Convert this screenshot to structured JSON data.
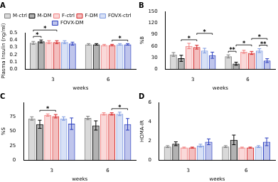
{
  "chart_data": [
    {
      "type": "bar",
      "title": "A",
      "x_label": "weeks",
      "y_label": "Plasma Insulin (ng/ml)",
      "categories": [
        "3",
        "6"
      ],
      "series": [
        {
          "name": "M-ctrl",
          "color": "#808080",
          "values": [
            0.36,
            0.34
          ],
          "errors": [
            0.02,
            0.01
          ]
        },
        {
          "name": "M-DM",
          "color": "#000000",
          "values": [
            0.38,
            0.34
          ],
          "errors": [
            0.02,
            0.01
          ]
        },
        {
          "name": "F-ctrl",
          "color": "#f08080",
          "values": [
            0.37,
            0.33
          ],
          "errors": [
            0.02,
            0.01
          ]
        },
        {
          "name": "F-DM",
          "color": "#d62728",
          "values": [
            0.37,
            0.33
          ],
          "errors": [
            0.02,
            0.01
          ]
        },
        {
          "name": "FOVX-ctrl",
          "color": "#7f9be0",
          "values": [
            0.37,
            0.34
          ],
          "errors": [
            0.02,
            0.01
          ]
        },
        {
          "name": "FOVX-DM",
          "color": "#2b3fbf",
          "values": [
            0.35,
            0.34
          ],
          "errors": [
            0.02,
            0.01
          ]
        }
      ],
      "ylim": [
        0,
        0.5
      ],
      "yticks": [
        {
          "value": 0,
          "label": "0.0"
        },
        0.1,
        0.2,
        0.3,
        0.4,
        0.5
      ],
      "grid": false,
      "legend": "top",
      "annotations": [
        {
          "category": "3",
          "from": "M-ctrl",
          "to": "M-DM",
          "label": "*"
        },
        {
          "category": "3",
          "from": "M-ctrl",
          "to": "F-DM",
          "label": "*"
        },
        {
          "category": "6",
          "from": "F-DM",
          "to": "FOVX-DM",
          "label": "*"
        }
      ]
    },
    {
      "type": "bar",
      "title": "B",
      "x_label": "weeks",
      "y_label": "%B",
      "categories": [
        "3",
        "6"
      ],
      "series": [
        {
          "name": "M-ctrl",
          "color": "#808080",
          "values": [
            38,
            33
          ],
          "errors": [
            5,
            4
          ]
        },
        {
          "name": "M-DM",
          "color": "#000000",
          "values": [
            28,
            14
          ],
          "errors": [
            8,
            4
          ]
        },
        {
          "name": "F-ctrl",
          "color": "#f08080",
          "values": [
            60,
            45
          ],
          "errors": [
            7,
            4
          ]
        },
        {
          "name": "F-DM",
          "color": "#d62728",
          "values": [
            57,
            42
          ],
          "errors": [
            5,
            4
          ]
        },
        {
          "name": "FOVX-ctrl",
          "color": "#7f9be0",
          "values": [
            48,
            48
          ],
          "errors": [
            6,
            5
          ]
        },
        {
          "name": "FOVX-DM",
          "color": "#2b3fbf",
          "values": [
            36,
            22
          ],
          "errors": [
            8,
            5
          ]
        }
      ],
      "ylim": [
        0,
        150
      ],
      "yticks": [
        0,
        30,
        60,
        90,
        120,
        150
      ],
      "grid": false,
      "annotations": [
        {
          "category": "3",
          "from": "M-DM",
          "to": "F-DM",
          "label": "*"
        },
        {
          "category": "3",
          "from": "F-DM",
          "to": "FOVX-DM",
          "label": "*"
        },
        {
          "category": "6",
          "from": "M-ctrl",
          "to": "M-DM",
          "label": "**"
        },
        {
          "category": "6",
          "from": "FOVX-ctrl",
          "to": "FOVX-DM",
          "label": "**"
        },
        {
          "category": "6",
          "from": "M-DM",
          "to": "F-DM",
          "label": "*"
        },
        {
          "category": "6",
          "from": "F-DM",
          "to": "FOVX-DM",
          "label": "*"
        }
      ]
    },
    {
      "type": "bar",
      "title": "C",
      "x_label": "weeks",
      "y_label": "%S",
      "categories": [
        "3",
        "6"
      ],
      "series": [
        {
          "name": "M-ctrl",
          "color": "#808080",
          "values": [
            72,
            73
          ],
          "errors": [
            3,
            3
          ]
        },
        {
          "name": "M-DM",
          "color": "#000000",
          "values": [
            62,
            60
          ],
          "errors": [
            7,
            8
          ]
        },
        {
          "name": "F-ctrl",
          "color": "#f08080",
          "values": [
            78,
            80
          ],
          "errors": [
            2,
            2
          ]
        },
        {
          "name": "F-DM",
          "color": "#d62728",
          "values": [
            76,
            80
          ],
          "errors": [
            3,
            2
          ]
        },
        {
          "name": "FOVX-ctrl",
          "color": "#7f9be0",
          "values": [
            72,
            80
          ],
          "errors": [
            3,
            3
          ]
        },
        {
          "name": "FOVX-DM",
          "color": "#2b3fbf",
          "values": [
            63,
            62
          ],
          "errors": [
            10,
            10
          ]
        }
      ],
      "ylim": [
        0,
        100
      ],
      "yticks": [
        0,
        25,
        50,
        75
      ],
      "grid": false,
      "annotations": [
        {
          "category": "3",
          "from": "M-DM",
          "to": "F-DM",
          "label": "*"
        },
        {
          "category": "6",
          "from": "F-DM",
          "to": "FOVX-DM",
          "label": "*"
        }
      ]
    },
    {
      "type": "bar",
      "title": "D",
      "x_label": "weeks",
      "y_label": "HOMA-IR",
      "categories": [
        "3",
        "6"
      ],
      "series": [
        {
          "name": "M-ctrl",
          "color": "#808080",
          "values": [
            1.4,
            1.4
          ],
          "errors": [
            0.1,
            0.1
          ]
        },
        {
          "name": "M-DM",
          "color": "#000000",
          "values": [
            1.7,
            2.1
          ],
          "errors": [
            0.2,
            0.5
          ]
        },
        {
          "name": "F-ctrl",
          "color": "#f08080",
          "values": [
            1.3,
            1.3
          ],
          "errors": [
            0.05,
            0.05
          ]
        },
        {
          "name": "F-DM",
          "color": "#d62728",
          "values": [
            1.3,
            1.3
          ],
          "errors": [
            0.05,
            0.05
          ]
        },
        {
          "name": "FOVX-ctrl",
          "color": "#7f9be0",
          "values": [
            1.5,
            1.4
          ],
          "errors": [
            0.15,
            0.1
          ]
        },
        {
          "name": "FOVX-DM",
          "color": "#2b3fbf",
          "values": [
            1.9,
            1.9
          ],
          "errors": [
            0.3,
            0.4
          ]
        }
      ],
      "ylim": [
        0,
        6
      ],
      "yticks": [
        0,
        2,
        4,
        6
      ],
      "grid": false
    }
  ]
}
